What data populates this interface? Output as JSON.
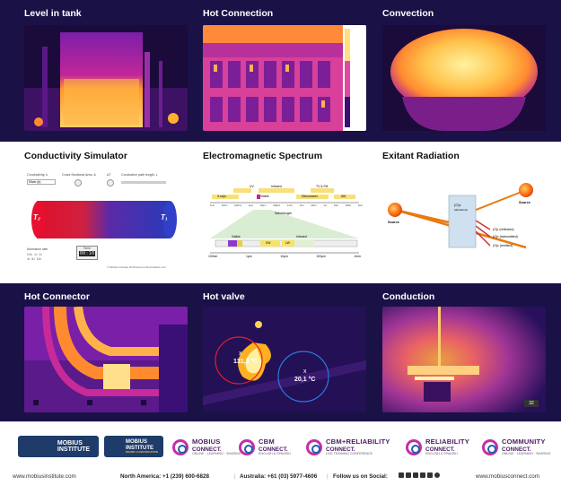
{
  "tiles": [
    {
      "title": "Level in tank"
    },
    {
      "title": "Hot Connection"
    },
    {
      "title": "Convection"
    },
    {
      "title": "Conductivity Simulator"
    },
    {
      "title": "Electromagnetic Spectrum"
    },
    {
      "title": "Exitant Radiation"
    },
    {
      "title": "Hot Connector"
    },
    {
      "title": "Hot valve"
    },
    {
      "title": "Conduction"
    }
  ],
  "conductivity_sim": {
    "conductivity_label": "Conductivity, k",
    "area_label": "Cross Sectional Area, A",
    "delta_t_label": "ΔT",
    "path_label": "Conductive path length, L",
    "material": "Silver (k)",
    "t2": "T₂",
    "t1": "T₁",
    "animation_rate": "Animation rate",
    "rate_options": [
      "0.5×",
      "1×",
      "2×",
      "4×",
      "8×",
      "16×"
    ],
    "timer_label": "Timer",
    "timer_value": "00:10",
    "credit": "© Mobius Institute 2018  www.mobiusinstitute.com"
  },
  "spectrum": {
    "upper_bands": [
      "UV",
      "Infrared",
      "TV & FM"
    ],
    "lower_bands": [
      "X-rays",
      "Visible",
      "Microwaves",
      "AM"
    ],
    "scale": [
      "1nm",
      "10nm",
      "100nm",
      "1μm",
      "10μm",
      "100μm",
      "1mm",
      "1cm",
      "10cm",
      "1m",
      "10m",
      "100m",
      "1km"
    ],
    "wavelength": "Wavelength",
    "zoom_bands": [
      "Visible",
      "SW",
      "LW",
      "Infrared"
    ],
    "zoom_scale": [
      "100nm",
      "1μm",
      "10μm",
      "100μm",
      "1mm"
    ]
  },
  "exitant": {
    "source_left": "Source",
    "source_right": "Source",
    "object_label": "(O)τ",
    "object_sub": "(absorbed)",
    "reflected": "(O)r  (reflected)",
    "transmitted": "(O)τ  (transmitted)",
    "emitted": "(O)ε  (emitted)"
  },
  "hot_valve": {
    "spot1_value": "131,3 °C",
    "spot2_value": "20,1 °C"
  },
  "conduction": {
    "badge": "32"
  },
  "logos": {
    "mobius1": "MOBIUS\nINSTITUTE",
    "mobius2": "MOBIUS\nINSTITUTE",
    "mobius2_sub": "BOARD of CERTIFICATION",
    "brands": [
      {
        "big": "MOBIUS",
        "rest": "CONNECT.",
        "sub": "ONLINE · LEARNING · SHARING"
      },
      {
        "big": "CBM",
        "rest": "CONNECT.",
        "sub": "ENGLISH & SPANISH"
      },
      {
        "big": "CBM+RELIABILITY",
        "rest": "CONNECT.",
        "sub": "LIVE TRAINING CONFERENCE"
      },
      {
        "big": "RELIABILITY",
        "rest": "CONNECT.",
        "sub": "ENGLISH & SPANISH"
      },
      {
        "big": "COMMUNITY",
        "rest": "CONNECT.",
        "sub": "ONLINE · LEARNING · SHARING"
      }
    ]
  },
  "footer": {
    "site_left": "www.mobiusinstitute.com",
    "north_america": "North America: +1 (239) 600-6828",
    "australia": "Australia: +61 (03) 5977-4606",
    "social": "Follow us on Social:",
    "site_right": "www.mobiusconnect.com"
  },
  "colors": {
    "dark_band": "#1a1147",
    "brand_magenta": "#c42fa6",
    "brand_blue": "#1f5fb3"
  }
}
